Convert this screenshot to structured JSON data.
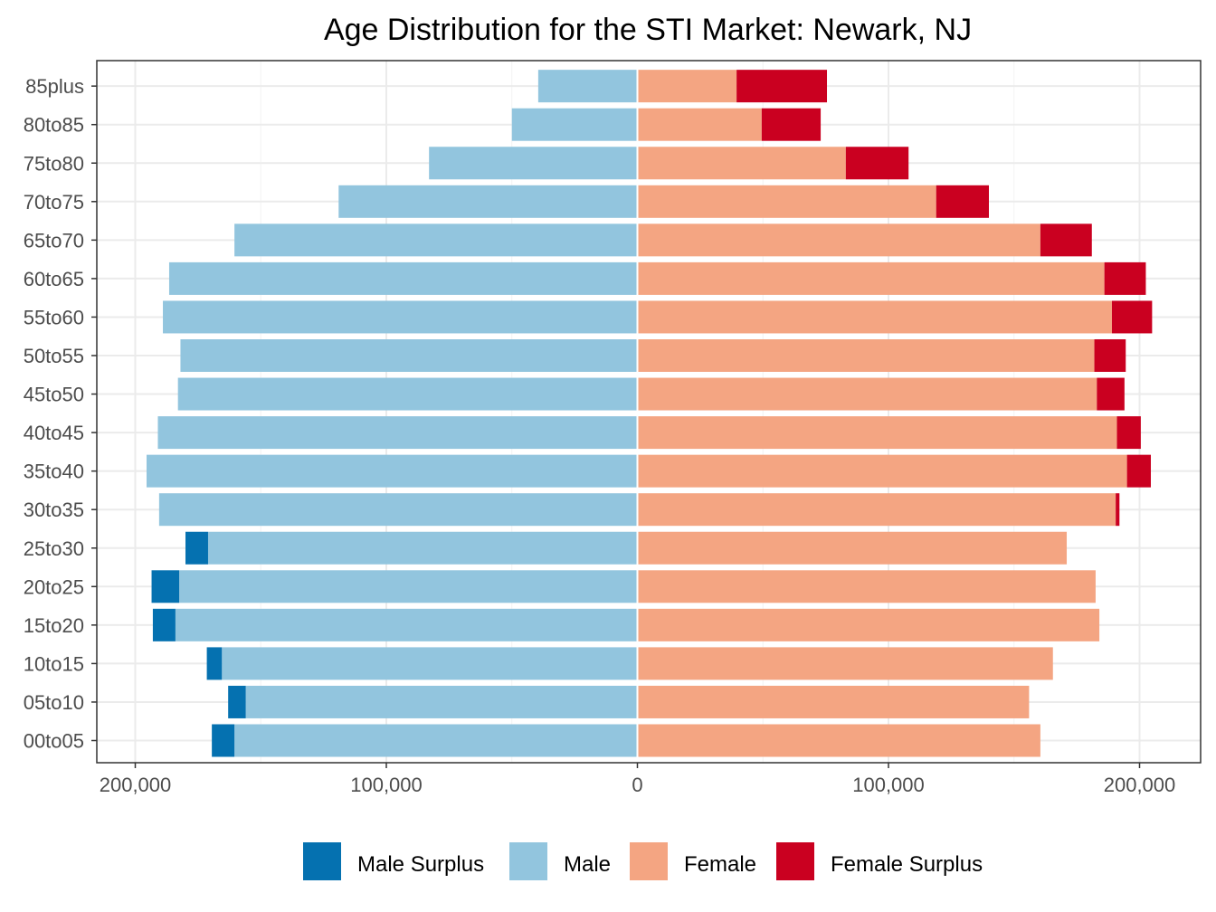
{
  "chart_data": {
    "type": "bar",
    "orientation": "horizontal",
    "title": "Age Distribution for the STI Market: Newark, NJ",
    "xlabel": "",
    "ylabel": "",
    "xlim": [
      -200000,
      200000
    ],
    "x_ticks": [
      -200000,
      -100000,
      0,
      100000,
      200000
    ],
    "x_tick_labels": [
      "200,000",
      "100,000",
      "0",
      "100,000",
      "200,000"
    ],
    "categories": [
      "00to05",
      "05to10",
      "10to15",
      "15to20",
      "20to25",
      "25to30",
      "30to35",
      "35to40",
      "40to45",
      "45to50",
      "50to55",
      "55to60",
      "60to65",
      "65to70",
      "70to75",
      "75to80",
      "80to85",
      "85plus"
    ],
    "series": [
      {
        "name": "Male Surplus",
        "color": "#0571b0",
        "side": "left",
        "stacked_on": "Male",
        "values": [
          9000,
          7000,
          6000,
          9000,
          11000,
          9000,
          0,
          0,
          0,
          0,
          0,
          0,
          0,
          0,
          0,
          0,
          0,
          0
        ]
      },
      {
        "name": "Male",
        "color": "#92c5de",
        "side": "left",
        "values": [
          160500,
          156000,
          165500,
          184000,
          182500,
          171000,
          190500,
          195500,
          191000,
          183000,
          182000,
          189000,
          186500,
          160500,
          119000,
          83000,
          50000,
          39500
        ]
      },
      {
        "name": "Female",
        "color": "#f4a582",
        "side": "right",
        "values": [
          160500,
          156000,
          165500,
          184000,
          182500,
          171000,
          190500,
          195000,
          191000,
          183000,
          182000,
          189000,
          186000,
          160500,
          119000,
          83000,
          49500,
          39500
        ]
      },
      {
        "name": "Female Surplus",
        "color": "#ca0020",
        "side": "right",
        "stacked_on": "Female",
        "values": [
          0,
          0,
          0,
          0,
          0,
          0,
          1500,
          9500,
          9500,
          11000,
          12500,
          16000,
          16500,
          20500,
          21000,
          25000,
          23500,
          36000
        ]
      }
    ],
    "legend": {
      "position": "bottom",
      "entries": [
        "Male Surplus",
        "Male",
        "Female",
        "Female Surplus"
      ]
    },
    "grid": true
  }
}
